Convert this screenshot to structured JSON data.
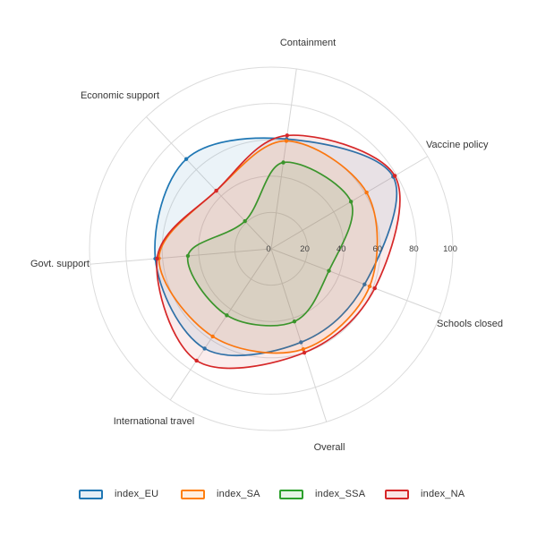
{
  "chart_data": {
    "type": "radar",
    "title": "",
    "categories": [
      "Containment",
      "Vaccine policy",
      "Schools closed",
      "Overall",
      "International travel",
      "Govt. support",
      "Economic support"
    ],
    "series": [
      {
        "name": "index_EU",
        "color": "#1f77b4",
        "values": [
          61,
          78,
          55,
          54,
          66,
          64,
          68
        ]
      },
      {
        "name": "index_SA",
        "color": "#ff7f0e",
        "values": [
          60,
          61,
          58,
          58,
          58,
          62,
          44
        ]
      },
      {
        "name": "index_SSA",
        "color": "#2ca02c",
        "values": [
          48,
          51,
          34,
          42,
          44,
          46,
          21
        ]
      },
      {
        "name": "index_NA",
        "color": "#d62728",
        "values": [
          63,
          79,
          61,
          60,
          74,
          63,
          44
        ]
      }
    ],
    "radial_ticks": [
      "0",
      "20",
      "40",
      "60",
      "80",
      "100"
    ],
    "rlim": [
      0,
      100
    ],
    "start_angle_deg": 82,
    "rotation_direction": "clockwise",
    "grid_shape": "circular",
    "legend_position": "bottom"
  },
  "colors": {
    "background": "#ffffff",
    "grid_line": "#dcdcdc",
    "spoke_line": "#d6d6d6",
    "axis_label": "#363636",
    "tick_label": "#444444",
    "legend_text": "#333333"
  }
}
